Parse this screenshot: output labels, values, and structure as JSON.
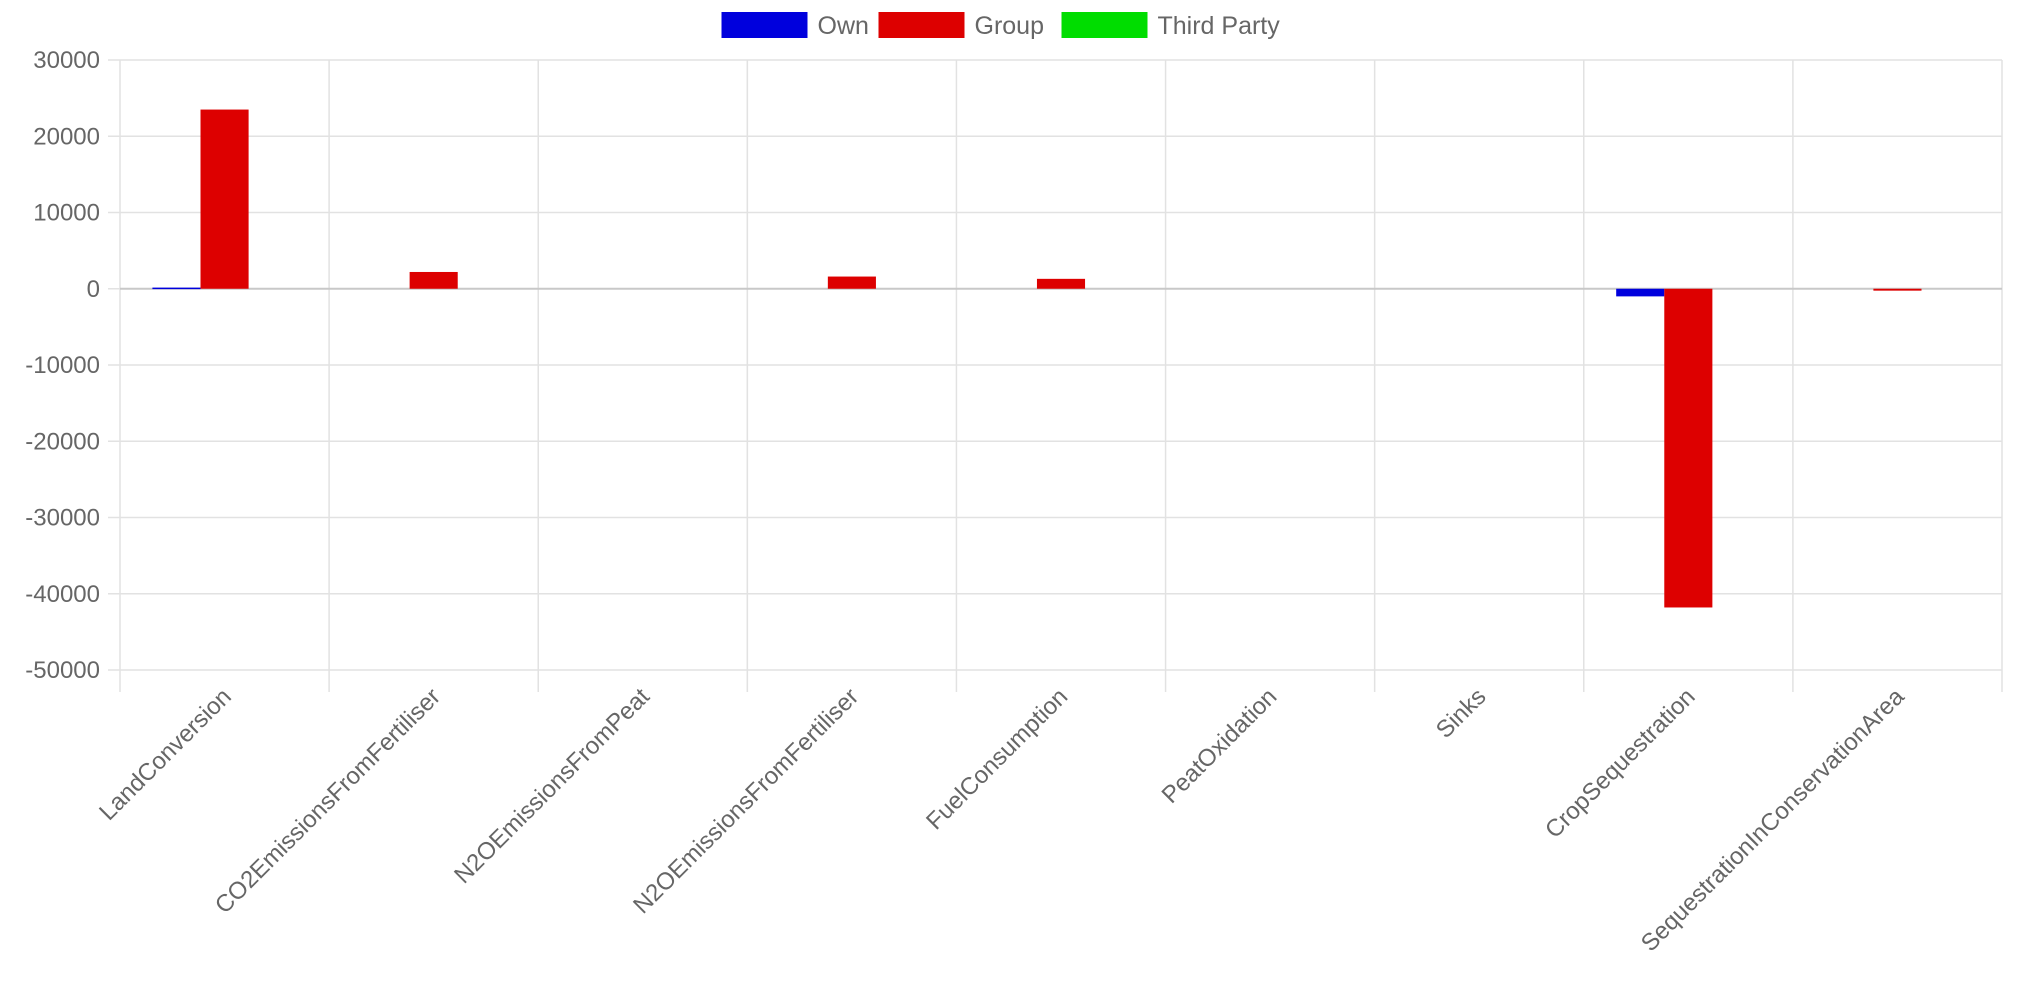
{
  "chart_data": {
    "type": "bar",
    "categories": [
      "LandConversion",
      "CO2EmissionsFromFertiliser",
      "N2OEmissionsFromPeat",
      "N2OEmissionsFromFertiliser",
      "FuelConsumption",
      "PeatOxidation",
      "Sinks",
      "CropSequestration",
      "SequestrationInConservationArea"
    ],
    "series": [
      {
        "name": "Own",
        "color": "#0000dd",
        "values": [
          150,
          0,
          0,
          0,
          0,
          0,
          0,
          -1000,
          0
        ]
      },
      {
        "name": "Group",
        "color": "#dd0000",
        "values": [
          23500,
          2200,
          0,
          1600,
          1300,
          0,
          0,
          -41800,
          -250
        ]
      },
      {
        "name": "Third Party",
        "color": "#00dd00",
        "values": [
          0,
          0,
          0,
          0,
          0,
          0,
          0,
          0,
          0
        ]
      }
    ],
    "ylim": [
      -50000,
      30000
    ],
    "yticks": [
      30000,
      20000,
      10000,
      0,
      -10000,
      -20000,
      -30000,
      -40000,
      -50000
    ],
    "xlabel": "",
    "ylabel": "",
    "grid": true,
    "legend_position": "top-center"
  }
}
